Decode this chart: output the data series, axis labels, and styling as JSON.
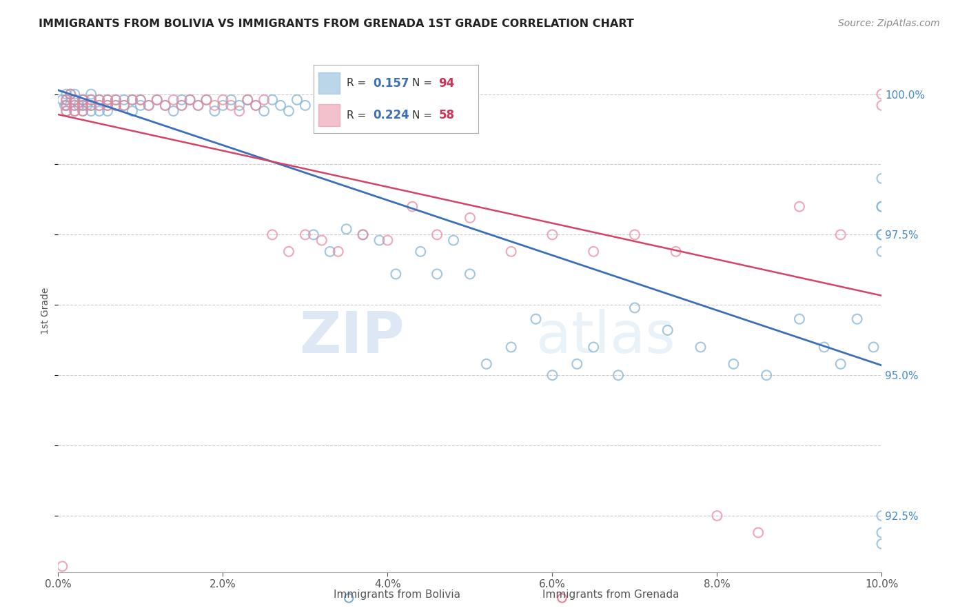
{
  "title": "IMMIGRANTS FROM BOLIVIA VS IMMIGRANTS FROM GRENADA 1ST GRADE CORRELATION CHART",
  "source": "Source: ZipAtlas.com",
  "ylabel": "1st Grade",
  "xmin": 0.0,
  "xmax": 0.1,
  "ymin": 0.915,
  "ymax": 1.008,
  "yticks": [
    0.925,
    0.9375,
    0.95,
    0.9625,
    0.975,
    0.9875,
    1.0
  ],
  "ytick_labels": [
    "92.5%",
    "",
    "95.0%",
    "",
    "97.5%",
    "",
    "100.0%"
  ],
  "xticks": [
    0.0,
    0.02,
    0.04,
    0.06,
    0.08,
    0.1
  ],
  "xtick_labels": [
    "0.0%",
    "2.0%",
    "4.0%",
    "6.0%",
    "8.0%",
    "10.0%"
  ],
  "bolivia_color": "#7bafd4",
  "grenada_color": "#e8849a",
  "bolivia_R": 0.157,
  "bolivia_N": 94,
  "grenada_R": 0.224,
  "grenada_N": 58,
  "legend_label_bolivia": "Immigrants from Bolivia",
  "legend_label_grenada": "Immigrants from Grenada",
  "watermark_zip": "ZIP",
  "watermark_atlas": "atlas",
  "bolivia_x": [
    0.0005,
    0.0008,
    0.001,
    0.001,
    0.001,
    0.001,
    0.0015,
    0.002,
    0.002,
    0.002,
    0.002,
    0.002,
    0.0025,
    0.003,
    0.003,
    0.003,
    0.003,
    0.0035,
    0.004,
    0.004,
    0.004,
    0.004,
    0.005,
    0.005,
    0.005,
    0.006,
    0.006,
    0.006,
    0.007,
    0.007,
    0.008,
    0.008,
    0.009,
    0.009,
    0.01,
    0.01,
    0.011,
    0.012,
    0.013,
    0.014,
    0.015,
    0.015,
    0.016,
    0.017,
    0.018,
    0.019,
    0.02,
    0.021,
    0.022,
    0.023,
    0.024,
    0.025,
    0.026,
    0.027,
    0.028,
    0.029,
    0.03,
    0.031,
    0.033,
    0.035,
    0.037,
    0.039,
    0.041,
    0.044,
    0.046,
    0.048,
    0.05,
    0.052,
    0.055,
    0.058,
    0.06,
    0.063,
    0.065,
    0.068,
    0.07,
    0.074,
    0.078,
    0.082,
    0.086,
    0.09,
    0.093,
    0.095,
    0.097,
    0.099,
    0.1,
    0.1,
    0.1,
    0.1,
    0.1,
    0.1,
    0.1,
    0.1,
    0.1,
    0.1
  ],
  "bolivia_y": [
    0.999,
    0.998,
    1.0,
    0.999,
    0.998,
    0.997,
    1.0,
    0.999,
    0.998,
    0.997,
    0.999,
    1.0,
    0.998,
    0.999,
    0.998,
    0.997,
    0.999,
    0.998,
    1.0,
    0.999,
    0.998,
    0.997,
    0.999,
    0.998,
    0.997,
    0.999,
    0.998,
    0.997,
    0.999,
    0.998,
    0.999,
    0.998,
    0.999,
    0.997,
    0.999,
    0.998,
    0.998,
    0.999,
    0.998,
    0.997,
    0.999,
    0.998,
    0.999,
    0.998,
    0.999,
    0.997,
    0.998,
    0.999,
    0.998,
    0.999,
    0.998,
    0.997,
    0.999,
    0.998,
    0.997,
    0.999,
    0.998,
    0.975,
    0.972,
    0.976,
    0.975,
    0.974,
    0.968,
    0.972,
    0.968,
    0.974,
    0.968,
    0.952,
    0.955,
    0.96,
    0.95,
    0.952,
    0.955,
    0.95,
    0.962,
    0.958,
    0.955,
    0.952,
    0.95,
    0.96,
    0.955,
    0.952,
    0.96,
    0.955,
    0.985,
    0.975,
    0.98,
    0.975,
    0.972,
    0.98,
    0.975,
    0.925,
    0.922,
    0.92
  ],
  "grenada_x": [
    0.0005,
    0.001,
    0.001,
    0.001,
    0.0015,
    0.002,
    0.002,
    0.002,
    0.003,
    0.003,
    0.003,
    0.004,
    0.004,
    0.005,
    0.005,
    0.006,
    0.006,
    0.007,
    0.007,
    0.008,
    0.009,
    0.01,
    0.011,
    0.012,
    0.013,
    0.014,
    0.015,
    0.016,
    0.017,
    0.018,
    0.019,
    0.02,
    0.021,
    0.022,
    0.023,
    0.024,
    0.025,
    0.026,
    0.028,
    0.03,
    0.032,
    0.034,
    0.037,
    0.04,
    0.043,
    0.046,
    0.05,
    0.055,
    0.06,
    0.065,
    0.07,
    0.075,
    0.08,
    0.085,
    0.09,
    0.095,
    0.1,
    0.1
  ],
  "grenada_y": [
    0.916,
    0.999,
    0.998,
    0.997,
    1.0,
    0.999,
    0.998,
    0.997,
    0.999,
    0.998,
    0.997,
    0.999,
    0.998,
    0.999,
    0.998,
    0.999,
    0.998,
    0.999,
    0.998,
    0.998,
    0.999,
    0.999,
    0.998,
    0.999,
    0.998,
    0.999,
    0.998,
    0.999,
    0.998,
    0.999,
    0.998,
    0.999,
    0.998,
    0.997,
    0.999,
    0.998,
    0.999,
    0.975,
    0.972,
    0.975,
    0.974,
    0.972,
    0.975,
    0.974,
    0.98,
    0.975,
    0.978,
    0.972,
    0.975,
    0.972,
    0.975,
    0.972,
    0.925,
    0.922,
    0.98,
    0.975,
    1.0,
    0.998
  ],
  "bolivia_line_color": "#3a6fba",
  "grenada_line_color": "#d44466",
  "R_label_color": "#3a6fba",
  "N_label_color": "#cc3355"
}
